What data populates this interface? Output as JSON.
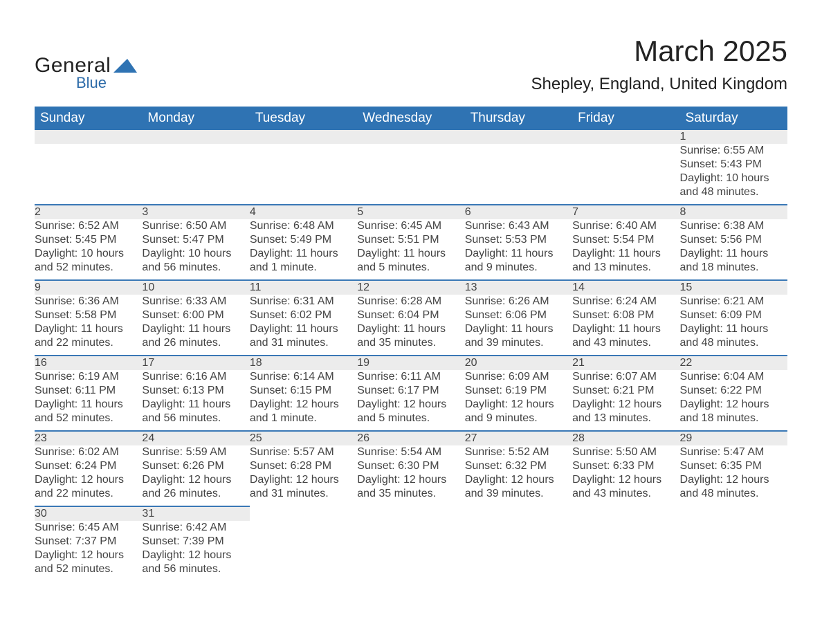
{
  "brand": {
    "line1": "General",
    "line2": "Blue",
    "logo_color": "#2f73b3",
    "text_color": "#222222"
  },
  "header": {
    "month_title": "March 2025",
    "location": "Shepley, England, United Kingdom"
  },
  "calendar": {
    "header_bg": "#2f73b3",
    "header_fg": "#ffffff",
    "daynum_bg": "#ececec",
    "row_divider": "#3a78b6",
    "day_headers": [
      "Sunday",
      "Monday",
      "Tuesday",
      "Wednesday",
      "Thursday",
      "Friday",
      "Saturday"
    ],
    "weeks": [
      [
        null,
        null,
        null,
        null,
        null,
        null,
        {
          "n": "1",
          "sunrise": "Sunrise: 6:55 AM",
          "sunset": "Sunset: 5:43 PM",
          "day1": "Daylight: 10 hours",
          "day2": "and 48 minutes."
        }
      ],
      [
        {
          "n": "2",
          "sunrise": "Sunrise: 6:52 AM",
          "sunset": "Sunset: 5:45 PM",
          "day1": "Daylight: 10 hours",
          "day2": "and 52 minutes."
        },
        {
          "n": "3",
          "sunrise": "Sunrise: 6:50 AM",
          "sunset": "Sunset: 5:47 PM",
          "day1": "Daylight: 10 hours",
          "day2": "and 56 minutes."
        },
        {
          "n": "4",
          "sunrise": "Sunrise: 6:48 AM",
          "sunset": "Sunset: 5:49 PM",
          "day1": "Daylight: 11 hours",
          "day2": "and 1 minute."
        },
        {
          "n": "5",
          "sunrise": "Sunrise: 6:45 AM",
          "sunset": "Sunset: 5:51 PM",
          "day1": "Daylight: 11 hours",
          "day2": "and 5 minutes."
        },
        {
          "n": "6",
          "sunrise": "Sunrise: 6:43 AM",
          "sunset": "Sunset: 5:53 PM",
          "day1": "Daylight: 11 hours",
          "day2": "and 9 minutes."
        },
        {
          "n": "7",
          "sunrise": "Sunrise: 6:40 AM",
          "sunset": "Sunset: 5:54 PM",
          "day1": "Daylight: 11 hours",
          "day2": "and 13 minutes."
        },
        {
          "n": "8",
          "sunrise": "Sunrise: 6:38 AM",
          "sunset": "Sunset: 5:56 PM",
          "day1": "Daylight: 11 hours",
          "day2": "and 18 minutes."
        }
      ],
      [
        {
          "n": "9",
          "sunrise": "Sunrise: 6:36 AM",
          "sunset": "Sunset: 5:58 PM",
          "day1": "Daylight: 11 hours",
          "day2": "and 22 minutes."
        },
        {
          "n": "10",
          "sunrise": "Sunrise: 6:33 AM",
          "sunset": "Sunset: 6:00 PM",
          "day1": "Daylight: 11 hours",
          "day2": "and 26 minutes."
        },
        {
          "n": "11",
          "sunrise": "Sunrise: 6:31 AM",
          "sunset": "Sunset: 6:02 PM",
          "day1": "Daylight: 11 hours",
          "day2": "and 31 minutes."
        },
        {
          "n": "12",
          "sunrise": "Sunrise: 6:28 AM",
          "sunset": "Sunset: 6:04 PM",
          "day1": "Daylight: 11 hours",
          "day2": "and 35 minutes."
        },
        {
          "n": "13",
          "sunrise": "Sunrise: 6:26 AM",
          "sunset": "Sunset: 6:06 PM",
          "day1": "Daylight: 11 hours",
          "day2": "and 39 minutes."
        },
        {
          "n": "14",
          "sunrise": "Sunrise: 6:24 AM",
          "sunset": "Sunset: 6:08 PM",
          "day1": "Daylight: 11 hours",
          "day2": "and 43 minutes."
        },
        {
          "n": "15",
          "sunrise": "Sunrise: 6:21 AM",
          "sunset": "Sunset: 6:09 PM",
          "day1": "Daylight: 11 hours",
          "day2": "and 48 minutes."
        }
      ],
      [
        {
          "n": "16",
          "sunrise": "Sunrise: 6:19 AM",
          "sunset": "Sunset: 6:11 PM",
          "day1": "Daylight: 11 hours",
          "day2": "and 52 minutes."
        },
        {
          "n": "17",
          "sunrise": "Sunrise: 6:16 AM",
          "sunset": "Sunset: 6:13 PM",
          "day1": "Daylight: 11 hours",
          "day2": "and 56 minutes."
        },
        {
          "n": "18",
          "sunrise": "Sunrise: 6:14 AM",
          "sunset": "Sunset: 6:15 PM",
          "day1": "Daylight: 12 hours",
          "day2": "and 1 minute."
        },
        {
          "n": "19",
          "sunrise": "Sunrise: 6:11 AM",
          "sunset": "Sunset: 6:17 PM",
          "day1": "Daylight: 12 hours",
          "day2": "and 5 minutes."
        },
        {
          "n": "20",
          "sunrise": "Sunrise: 6:09 AM",
          "sunset": "Sunset: 6:19 PM",
          "day1": "Daylight: 12 hours",
          "day2": "and 9 minutes."
        },
        {
          "n": "21",
          "sunrise": "Sunrise: 6:07 AM",
          "sunset": "Sunset: 6:21 PM",
          "day1": "Daylight: 12 hours",
          "day2": "and 13 minutes."
        },
        {
          "n": "22",
          "sunrise": "Sunrise: 6:04 AM",
          "sunset": "Sunset: 6:22 PM",
          "day1": "Daylight: 12 hours",
          "day2": "and 18 minutes."
        }
      ],
      [
        {
          "n": "23",
          "sunrise": "Sunrise: 6:02 AM",
          "sunset": "Sunset: 6:24 PM",
          "day1": "Daylight: 12 hours",
          "day2": "and 22 minutes."
        },
        {
          "n": "24",
          "sunrise": "Sunrise: 5:59 AM",
          "sunset": "Sunset: 6:26 PM",
          "day1": "Daylight: 12 hours",
          "day2": "and 26 minutes."
        },
        {
          "n": "25",
          "sunrise": "Sunrise: 5:57 AM",
          "sunset": "Sunset: 6:28 PM",
          "day1": "Daylight: 12 hours",
          "day2": "and 31 minutes."
        },
        {
          "n": "26",
          "sunrise": "Sunrise: 5:54 AM",
          "sunset": "Sunset: 6:30 PM",
          "day1": "Daylight: 12 hours",
          "day2": "and 35 minutes."
        },
        {
          "n": "27",
          "sunrise": "Sunrise: 5:52 AM",
          "sunset": "Sunset: 6:32 PM",
          "day1": "Daylight: 12 hours",
          "day2": "and 39 minutes."
        },
        {
          "n": "28",
          "sunrise": "Sunrise: 5:50 AM",
          "sunset": "Sunset: 6:33 PM",
          "day1": "Daylight: 12 hours",
          "day2": "and 43 minutes."
        },
        {
          "n": "29",
          "sunrise": "Sunrise: 5:47 AM",
          "sunset": "Sunset: 6:35 PM",
          "day1": "Daylight: 12 hours",
          "day2": "and 48 minutes."
        }
      ],
      [
        {
          "n": "30",
          "sunrise": "Sunrise: 6:45 AM",
          "sunset": "Sunset: 7:37 PM",
          "day1": "Daylight: 12 hours",
          "day2": "and 52 minutes."
        },
        {
          "n": "31",
          "sunrise": "Sunrise: 6:42 AM",
          "sunset": "Sunset: 7:39 PM",
          "day1": "Daylight: 12 hours",
          "day2": "and 56 minutes."
        },
        null,
        null,
        null,
        null,
        null
      ]
    ]
  }
}
